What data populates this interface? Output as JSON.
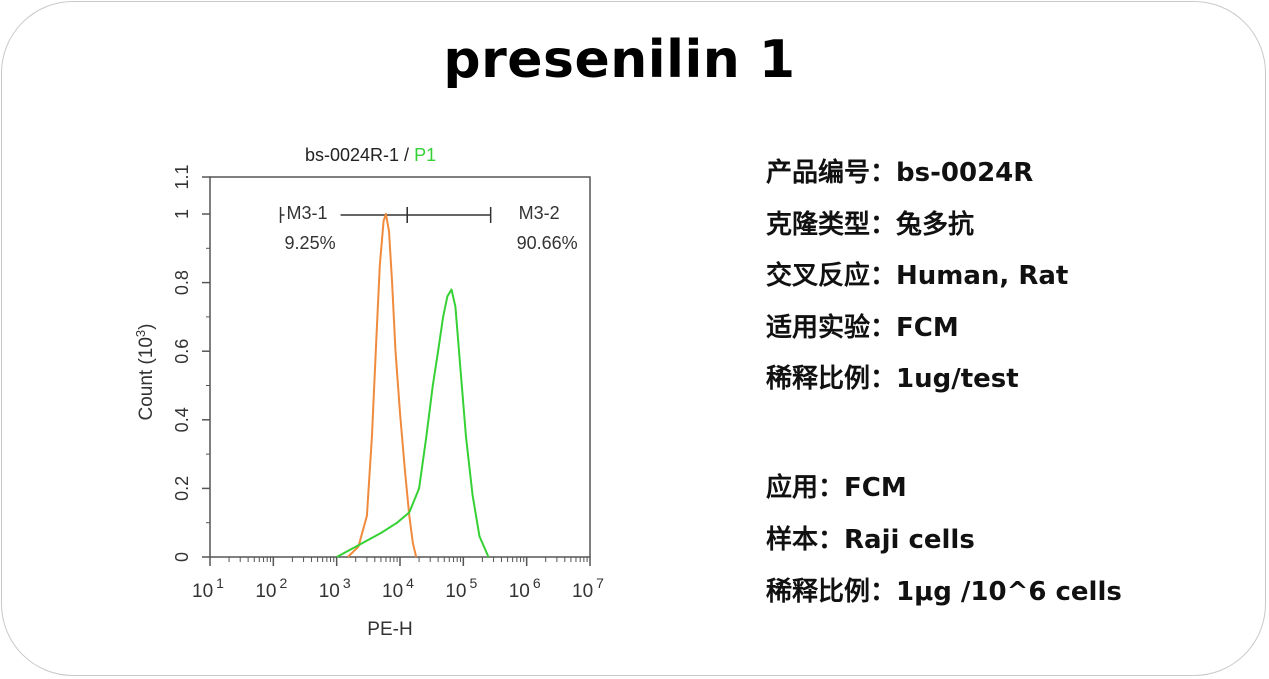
{
  "title": "presenilin 1",
  "info": [
    {
      "key": "产品编号：",
      "value": "bs-0024R"
    },
    {
      "key": "克隆类型：",
      "value": "兔多抗"
    },
    {
      "key": "交叉反应：",
      "value": "Human, Rat"
    },
    {
      "key": "适用实验：",
      "value": "FCM"
    },
    {
      "key": "稀释比例：",
      "value": "1ug/test"
    }
  ],
  "application": [
    {
      "key": "应用：",
      "value": "FCM"
    },
    {
      "key": "样本：",
      "value": "Raji cells"
    },
    {
      "key": "稀释比例：",
      "value": "1μg /10^6 cells"
    }
  ],
  "chart_data": {
    "type": "line",
    "title": "bs-0024R-1 / ",
    "title_highlight": "P1",
    "xlabel": "PE-H",
    "ylabel": "Count (10",
    "ylabel_sup": "3",
    "ylabel_close": ")",
    "x_scale": "log",
    "xlim": [
      10,
      10000000
    ],
    "ylim": [
      0,
      1.1
    ],
    "xticks": [
      {
        "base": "10",
        "exp": "1",
        "value": 10
      },
      {
        "base": "10",
        "exp": "2",
        "value": 100
      },
      {
        "base": "10",
        "exp": "3",
        "value": 1000
      },
      {
        "base": "10",
        "exp": "4",
        "value": 10000
      },
      {
        "base": "10",
        "exp": "5",
        "value": 100000
      },
      {
        "base": "10",
        "exp": "6",
        "value": 1000000
      },
      {
        "base": "10",
        "exp": "7",
        "value": 10000000
      }
    ],
    "yticks": [
      "0",
      "0.2",
      "0.4",
      "0.6",
      "0.8",
      "1",
      "1.1"
    ],
    "ytick_values": [
      0,
      0.2,
      0.4,
      0.6,
      0.8,
      1.0,
      1.1
    ],
    "gates": [
      {
        "name": "M3-1",
        "pct": "9.25%",
        "from": 130,
        "to": 13000
      },
      {
        "name": "M3-2",
        "pct": "90.66%",
        "from": 13000,
        "to": 270000
      }
    ],
    "series": [
      {
        "color": "#f08a3c",
        "points": [
          [
            1500,
            0
          ],
          [
            2200,
            0.03
          ],
          [
            3000,
            0.12
          ],
          [
            3600,
            0.35
          ],
          [
            4200,
            0.62
          ],
          [
            4800,
            0.85
          ],
          [
            5500,
            0.98
          ],
          [
            6000,
            1.0
          ],
          [
            6700,
            0.95
          ],
          [
            7500,
            0.8
          ],
          [
            8500,
            0.6
          ],
          [
            10000,
            0.42
          ],
          [
            12000,
            0.25
          ],
          [
            14000,
            0.12
          ],
          [
            16000,
            0.04
          ],
          [
            18000,
            0
          ]
        ]
      },
      {
        "color": "#35d135",
        "points": [
          [
            1000,
            0
          ],
          [
            2000,
            0.03
          ],
          [
            5000,
            0.07
          ],
          [
            9000,
            0.1
          ],
          [
            14000,
            0.13
          ],
          [
            20000,
            0.2
          ],
          [
            26000,
            0.35
          ],
          [
            33000,
            0.5
          ],
          [
            40000,
            0.6
          ],
          [
            48000,
            0.7
          ],
          [
            56000,
            0.76
          ],
          [
            65000,
            0.78
          ],
          [
            75000,
            0.73
          ],
          [
            90000,
            0.55
          ],
          [
            110000,
            0.35
          ],
          [
            140000,
            0.18
          ],
          [
            180000,
            0.06
          ],
          [
            250000,
            0
          ]
        ]
      }
    ],
    "colors": {
      "axis": "#555555",
      "title_highlight": "#35d135"
    }
  }
}
